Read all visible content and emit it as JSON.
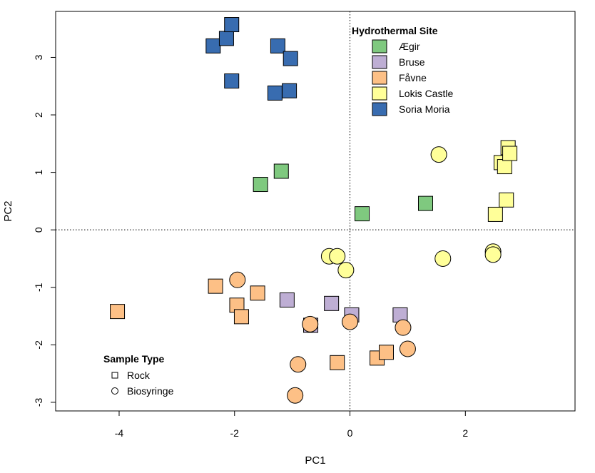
{
  "chart_data": {
    "type": "scatter",
    "xlabel": "PC1",
    "ylabel": "PC2",
    "xlim": [
      -5.1,
      3.9
    ],
    "ylim": [
      -3.15,
      3.8
    ],
    "x_ticks": [
      "-4",
      "-2",
      "0",
      "2"
    ],
    "y_ticks": [
      "-3",
      "-2",
      "-1",
      "0",
      "1",
      "2",
      "3"
    ],
    "reference_lines": {
      "x": 0,
      "y": 0,
      "style": "dotted"
    },
    "grid": false,
    "legends": {
      "site": {
        "title": "Hydrothermal Site",
        "placement": "top-center",
        "entries": [
          {
            "name": "Ægir",
            "color": "#7fc97f"
          },
          {
            "name": "Bruse",
            "color": "#beaed4"
          },
          {
            "name": "Fåvne",
            "color": "#fdc086"
          },
          {
            "name": "Lokis Castle",
            "color": "#ffff99"
          },
          {
            "name": "Soria Moria",
            "color": "#386cb0"
          }
        ]
      },
      "sample_type": {
        "title": "Sample Type",
        "placement": "bottom-left",
        "entries": [
          {
            "name": "Rock",
            "shape": "square"
          },
          {
            "name": "Biosyringe",
            "shape": "circle"
          }
        ]
      }
    },
    "series": [
      {
        "name": "Ægir",
        "color": "#7fc97f",
        "points": [
          {
            "x": -1.55,
            "y": 0.79,
            "shape": "square"
          },
          {
            "x": -1.19,
            "y": 1.02,
            "shape": "square"
          },
          {
            "x": 0.21,
            "y": 0.28,
            "shape": "square"
          },
          {
            "x": 1.31,
            "y": 0.46,
            "shape": "square"
          }
        ]
      },
      {
        "name": "Bruse",
        "color": "#beaed4",
        "points": [
          {
            "x": -1.09,
            "y": -1.22,
            "shape": "square"
          },
          {
            "x": -0.68,
            "y": -1.66,
            "shape": "square"
          },
          {
            "x": -0.32,
            "y": -1.28,
            "shape": "square"
          },
          {
            "x": 0.03,
            "y": -1.48,
            "shape": "square"
          },
          {
            "x": 0.87,
            "y": -1.48,
            "shape": "square"
          }
        ]
      },
      {
        "name": "Fåvne",
        "color": "#fdc086",
        "points": [
          {
            "x": -4.03,
            "y": -1.42,
            "shape": "square"
          },
          {
            "x": -2.33,
            "y": -0.98,
            "shape": "square"
          },
          {
            "x": -1.96,
            "y": -1.31,
            "shape": "square"
          },
          {
            "x": -1.88,
            "y": -1.51,
            "shape": "square"
          },
          {
            "x": -1.6,
            "y": -1.1,
            "shape": "square"
          },
          {
            "x": -0.22,
            "y": -2.31,
            "shape": "square"
          },
          {
            "x": 0.47,
            "y": -2.23,
            "shape": "square"
          },
          {
            "x": 0.63,
            "y": -2.13,
            "shape": "square"
          },
          {
            "x": -1.95,
            "y": -0.87,
            "shape": "circle"
          },
          {
            "x": -0.69,
            "y": -1.64,
            "shape": "circle"
          },
          {
            "x": -0.9,
            "y": -2.34,
            "shape": "circle"
          },
          {
            "x": -0.95,
            "y": -2.88,
            "shape": "circle"
          },
          {
            "x": 0.0,
            "y": -1.6,
            "shape": "circle"
          },
          {
            "x": 0.92,
            "y": -1.7,
            "shape": "circle"
          },
          {
            "x": 1.0,
            "y": -2.07,
            "shape": "circle"
          }
        ]
      },
      {
        "name": "Lokis Castle",
        "color": "#ffff99",
        "points": [
          {
            "x": 2.52,
            "y": 0.27,
            "shape": "square"
          },
          {
            "x": 2.62,
            "y": 1.17,
            "shape": "square"
          },
          {
            "x": 2.68,
            "y": 1.1,
            "shape": "square"
          },
          {
            "x": 2.71,
            "y": 0.52,
            "shape": "square"
          },
          {
            "x": 2.74,
            "y": 1.43,
            "shape": "square"
          },
          {
            "x": 2.77,
            "y": 1.33,
            "shape": "square"
          },
          {
            "x": -0.36,
            "y": -0.46,
            "shape": "circle"
          },
          {
            "x": -0.22,
            "y": -0.46,
            "shape": "circle"
          },
          {
            "x": -0.07,
            "y": -0.7,
            "shape": "circle"
          },
          {
            "x": 1.54,
            "y": 1.31,
            "shape": "circle"
          },
          {
            "x": 1.61,
            "y": -0.5,
            "shape": "circle"
          },
          {
            "x": 2.48,
            "y": -0.38,
            "shape": "circle"
          },
          {
            "x": 2.48,
            "y": -0.43,
            "shape": "circle"
          }
        ]
      },
      {
        "name": "Soria Moria",
        "color": "#386cb0",
        "points": [
          {
            "x": -2.37,
            "y": 3.2,
            "shape": "square"
          },
          {
            "x": -2.14,
            "y": 3.33,
            "shape": "square"
          },
          {
            "x": -2.05,
            "y": 3.57,
            "shape": "square"
          },
          {
            "x": -2.05,
            "y": 2.59,
            "shape": "square"
          },
          {
            "x": -1.25,
            "y": 3.2,
            "shape": "square"
          },
          {
            "x": -1.3,
            "y": 2.38,
            "shape": "square"
          },
          {
            "x": -1.03,
            "y": 2.98,
            "shape": "square"
          },
          {
            "x": -1.05,
            "y": 2.42,
            "shape": "square"
          }
        ]
      }
    ]
  }
}
